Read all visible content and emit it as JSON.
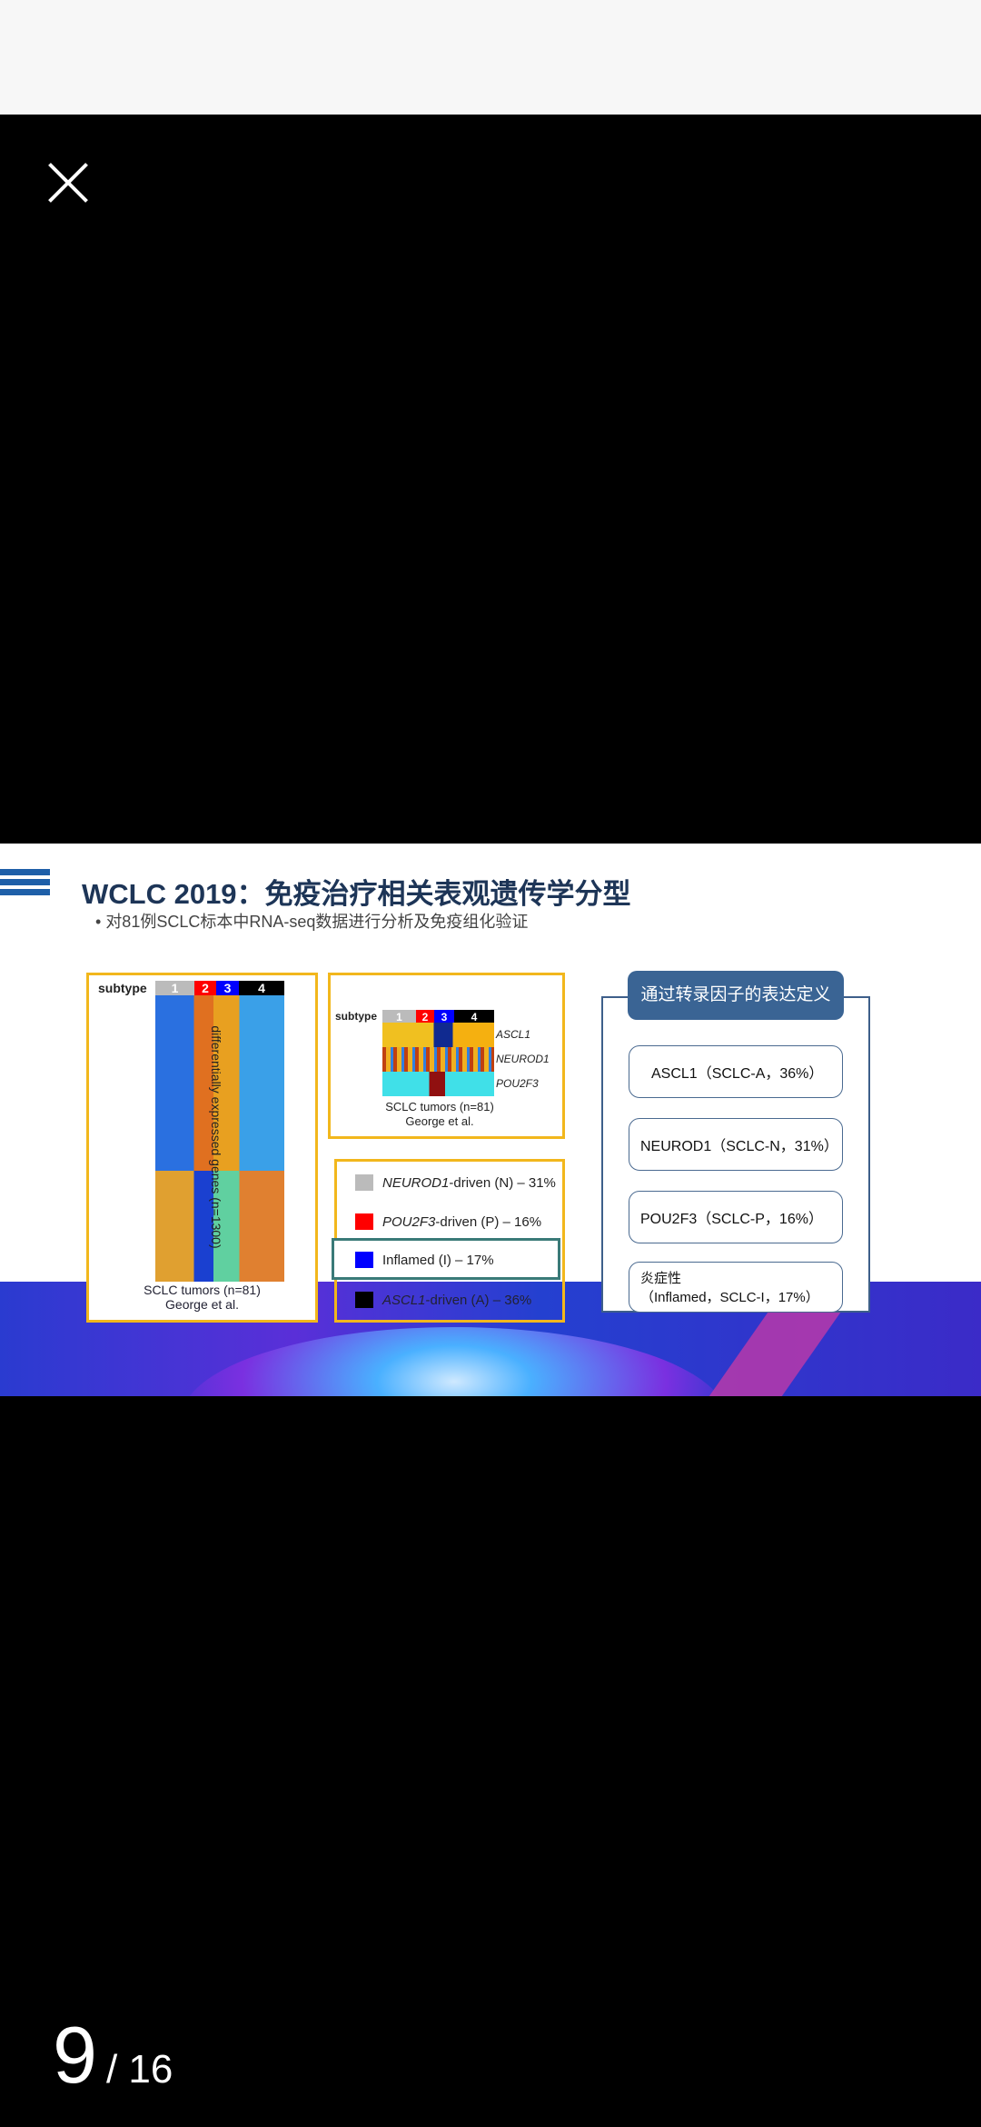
{
  "viewer": {
    "close_icon": "close-icon",
    "page_current": "9",
    "page_total": "/ 16"
  },
  "slide": {
    "title": "WCLC 2019：免疫治疗相关表观遗传学分型",
    "bullet": "对81例SCLC标本中RNA-seq数据进行分析及免疫组化验证",
    "heatmap_left": {
      "subtype_label": "subtype",
      "subtypes": [
        "1",
        "2",
        "3",
        "4"
      ],
      "side_label": "differentially expressed genes (n=1300)",
      "caption1": "SCLC tumors (n=81)",
      "caption2": "George et al."
    },
    "heatmap_small": {
      "subtype_label": "subtype",
      "subtypes": [
        "1",
        "2",
        "3",
        "4"
      ],
      "genes": [
        "ASCL1",
        "NEUROD1",
        "POU2F3"
      ],
      "caption1": "SCLC tumors (n=81)",
      "caption2": "George et al."
    },
    "legend": [
      {
        "gene": "NEUROD1",
        "rest": "-driven (N) – 31%",
        "color": "#bbbbbb"
      },
      {
        "gene": "POU2F3",
        "rest": "-driven (P) – 16%",
        "color": "#ff0000"
      },
      {
        "gene": "",
        "rest": "Inflamed (I) – 17%",
        "color": "#0000ff"
      },
      {
        "gene": "ASCL1",
        "rest": "-driven (A) – 36%",
        "color": "#000000"
      }
    ],
    "subtype_colors": [
      "#bbbbbb",
      "#ff0000",
      "#0000ff",
      "#000000"
    ],
    "panel": {
      "title": "通过转录因子的表达定义",
      "cards": [
        "ASCL1（SCLC-A，36%）",
        "NEUROD1（SCLC-N，31%）",
        "POU2F3（SCLC-P，16%）"
      ],
      "card4_line1": "炎症性",
      "card4_line2": "（Inflamed，SCLC-I，17%）"
    }
  }
}
